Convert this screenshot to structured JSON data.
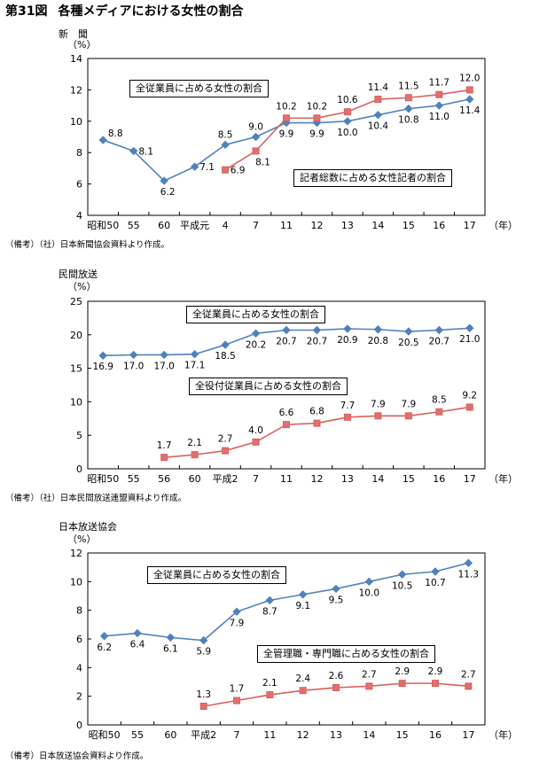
{
  "page_title": {
    "number": "第31図",
    "text": "各種メディアにおける女性の割合"
  },
  "colors": {
    "series_blue": "#4f81bd",
    "series_red": "#d9605c",
    "marker_red_fill": "#e07070"
  },
  "chart_data": [
    {
      "type": "line",
      "title": "新　聞",
      "ylabel": "（%）",
      "xunit": "（年）",
      "ylim": [
        4,
        14
      ],
      "yticks": [
        4,
        6,
        8,
        10,
        12,
        14
      ],
      "categories": [
        "昭和50",
        "55",
        "60",
        "平成元",
        "4",
        "7",
        "11",
        "12",
        "13",
        "14",
        "15",
        "16",
        "17"
      ],
      "series": [
        {
          "name": "全従業員に占める女性の割合",
          "marker": "diamond",
          "values": [
            8.8,
            8.1,
            6.2,
            7.1,
            8.5,
            9.0,
            9.9,
            9.9,
            10.0,
            10.4,
            10.8,
            11.0,
            11.4
          ],
          "labels": [
            "8.8",
            "8.1",
            "6.2",
            "7.1",
            "8.5",
            "9.0",
            "9.9",
            "9.9",
            "10.0",
            "10.4",
            "10.8",
            "11.0",
            "11.4"
          ]
        },
        {
          "name": "記者総数に占める女性記者の割合",
          "marker": "square",
          "values": [
            null,
            null,
            null,
            null,
            6.9,
            8.1,
            10.2,
            10.2,
            10.6,
            11.4,
            11.5,
            11.7,
            12.0
          ],
          "labels": [
            null,
            null,
            null,
            null,
            "6.9",
            "8.1",
            "10.2",
            "10.2",
            "10.6",
            "11.4",
            "11.5",
            "11.7",
            "12.0"
          ]
        }
      ],
      "legend_placement": "inside",
      "grid": false,
      "note": "（備考）（社）日本新聞協会資料より作成。"
    },
    {
      "type": "line",
      "title": "民間放送",
      "ylabel": "（%）",
      "xunit": "（年）",
      "ylim": [
        0,
        25
      ],
      "yticks": [
        0,
        5,
        10,
        15,
        20,
        25
      ],
      "categories": [
        "昭和50",
        "55",
        "56",
        "60",
        "平成2",
        "7",
        "11",
        "12",
        "13",
        "14",
        "15",
        "16",
        "17"
      ],
      "series": [
        {
          "name": "全従業員に占める女性の割合",
          "marker": "diamond",
          "values": [
            16.9,
            17.0,
            17.0,
            17.1,
            18.5,
            20.2,
            20.7,
            20.7,
            20.9,
            20.8,
            20.5,
            20.7,
            21.0
          ],
          "labels": [
            "16.9",
            "17.0",
            "17.0",
            "17.1",
            "18.5",
            "20.2",
            "20.7",
            "20.7",
            "20.9",
            "20.8",
            "20.5",
            "20.7",
            "21.0"
          ]
        },
        {
          "name": "全役付従業員に占める女性の割合",
          "marker": "square",
          "values": [
            null,
            null,
            1.7,
            2.1,
            2.7,
            4.0,
            6.6,
            6.8,
            7.7,
            7.9,
            7.9,
            8.5,
            9.2
          ],
          "labels": [
            null,
            null,
            "1.7",
            "2.1",
            "2.7",
            "4.0",
            "6.6",
            "6.8",
            "7.7",
            "7.9",
            "7.9",
            "8.5",
            "9.2"
          ]
        }
      ],
      "legend_placement": "inside",
      "grid": false,
      "note": "（備考）（社）日本民間放送連盟資料より作成。"
    },
    {
      "type": "line",
      "title": "日本放送協会",
      "ylabel": "（%）",
      "xunit": "（年）",
      "ylim": [
        0,
        12
      ],
      "yticks": [
        0,
        2,
        4,
        6,
        8,
        10,
        12
      ],
      "categories": [
        "昭和50",
        "55",
        "60",
        "平成2",
        "7",
        "11",
        "12",
        "13",
        "14",
        "15",
        "16",
        "17"
      ],
      "series": [
        {
          "name": "全従業員に占める女性の割合",
          "marker": "diamond",
          "values": [
            6.2,
            6.4,
            6.1,
            5.9,
            7.9,
            8.7,
            9.1,
            9.5,
            10.0,
            10.5,
            10.7,
            11.3
          ],
          "labels": [
            "6.2",
            "6.4",
            "6.1",
            "5.9",
            "7.9",
            "8.7",
            "9.1",
            "9.5",
            "10.0",
            "10.5",
            "10.7",
            "11.3"
          ]
        },
        {
          "name": "全管理職・専門職に占める女性の割合",
          "marker": "square",
          "values": [
            null,
            null,
            null,
            1.3,
            1.7,
            2.1,
            2.4,
            2.6,
            2.7,
            2.9,
            2.9,
            2.7
          ],
          "labels": [
            null,
            null,
            null,
            "1.3",
            "1.7",
            "2.1",
            "2.4",
            "2.6",
            "2.7",
            "2.9",
            "2.9",
            "2.7"
          ]
        }
      ],
      "legend_placement": "inside",
      "grid": false,
      "note": "（備考）日本放送協会資料より作成。"
    }
  ]
}
